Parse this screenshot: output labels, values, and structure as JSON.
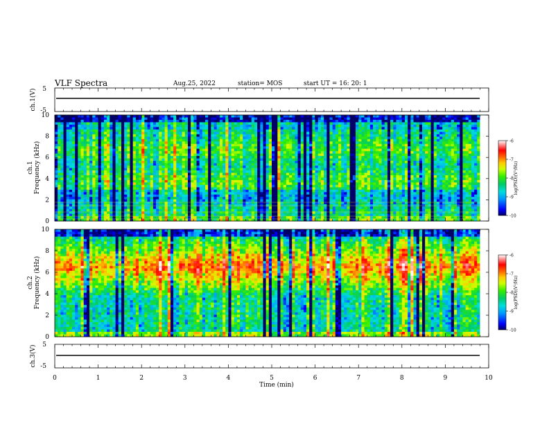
{
  "header": {
    "title": "VLF Spectra",
    "date": "Aug.25, 2022",
    "station": "station= MOS",
    "start_ut": "start  UT =   16: 20: 1"
  },
  "colors": {
    "colormap": [
      "#000066",
      "#0000ff",
      "#0099ff",
      "#00dddd",
      "#00cc66",
      "#33ee00",
      "#ccff00",
      "#ffcc00",
      "#ff6600",
      "#ff0000",
      "#ff9999",
      "#ffffff"
    ]
  },
  "chart_data": [
    {
      "type": "line",
      "ylabel": "ch.1(V)",
      "ylim": [
        -5,
        5
      ],
      "yticks": [
        "5",
        "-5"
      ],
      "description_values": {
        "level": -0.3
      }
    },
    {
      "type": "heatmap",
      "ylabel": "ch.1\nFrequency (kHz)",
      "ylabel_lines": [
        "ch.1",
        "Frequency (kHz)"
      ],
      "xlim": [
        0,
        10
      ],
      "ylim": [
        0,
        10
      ],
      "yticks": [
        "0",
        "2",
        "4",
        "6",
        "8",
        "10"
      ],
      "colorbar": {
        "label": "log(PSD)(V²/Hz)",
        "range": [
          -10,
          -6
        ],
        "ticks": [
          "-6",
          "-7",
          "-8",
          "-9",
          "-10"
        ]
      },
      "dominant_band_khz": [
        1,
        9
      ]
    },
    {
      "type": "heatmap",
      "ylabel_lines": [
        "ch.2",
        "Frequency (kHz)"
      ],
      "xlim": [
        0,
        10
      ],
      "ylim": [
        0,
        10
      ],
      "yticks": [
        "0",
        "2",
        "4",
        "6",
        "8",
        "10"
      ],
      "colorbar": {
        "label": "log(PSD)(V²/Hz)",
        "range": [
          -10,
          -6
        ],
        "ticks": [
          "-6",
          "-7",
          "-8",
          "-9",
          "-10"
        ]
      },
      "dominant_band_khz": [
        5,
        8
      ]
    },
    {
      "type": "line",
      "ylabel": "ch.3(V)",
      "ylim": [
        -5,
        5
      ],
      "yticks": [
        "5",
        "-5"
      ],
      "xlabel": "Time  (min)",
      "xlim": [
        0,
        10
      ],
      "xticks": [
        "0",
        "1",
        "2",
        "3",
        "4",
        "5",
        "6",
        "7",
        "8",
        "9",
        "10"
      ]
    }
  ]
}
